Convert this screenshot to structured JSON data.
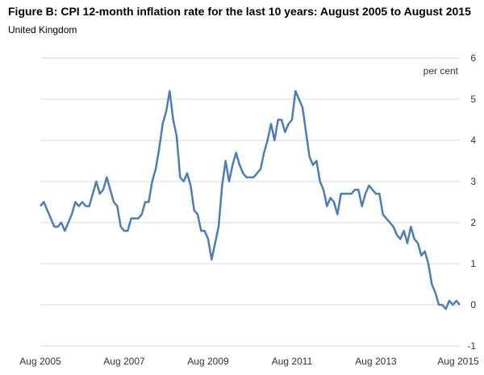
{
  "chart_data": {
    "type": "line",
    "title": "Figure B: CPI 12-month inflation rate for the last 10 years: August 2005 to August 2015",
    "subtitle": "United Kingdom",
    "unit_label": "per cent",
    "ylim": [
      -1,
      6
    ],
    "yticks": [
      -1,
      0,
      1,
      2,
      3,
      4,
      5,
      6
    ],
    "grid": true,
    "xlim": [
      "Aug 2005",
      "Aug 2015"
    ],
    "x_tick_labels": [
      "Aug 2005",
      "Aug 2007",
      "Aug 2009",
      "Aug 2011",
      "Aug 2013",
      "Aug 2015"
    ],
    "series": [
      {
        "color": "#4a7ebb",
        "start": "Aug 2005",
        "frequency": "monthly",
        "values": [
          2.4,
          2.5,
          2.3,
          2.1,
          1.9,
          1.9,
          2.0,
          1.8,
          2.0,
          2.2,
          2.5,
          2.4,
          2.5,
          2.4,
          2.4,
          2.7,
          3.0,
          2.7,
          2.8,
          3.1,
          2.8,
          2.5,
          2.4,
          1.9,
          1.8,
          1.8,
          2.1,
          2.1,
          2.1,
          2.2,
          2.5,
          2.5,
          3.0,
          3.3,
          3.8,
          4.4,
          4.7,
          5.2,
          4.5,
          4.1,
          3.1,
          3.0,
          3.2,
          2.9,
          2.3,
          2.2,
          1.8,
          1.8,
          1.6,
          1.1,
          1.5,
          1.9,
          2.9,
          3.5,
          3.0,
          3.4,
          3.7,
          3.4,
          3.2,
          3.1,
          3.1,
          3.1,
          3.2,
          3.3,
          3.7,
          4.0,
          4.4,
          4.0,
          4.5,
          4.5,
          4.2,
          4.4,
          4.5,
          5.2,
          5.0,
          4.8,
          4.2,
          3.6,
          3.4,
          3.5,
          3.0,
          2.8,
          2.4,
          2.6,
          2.5,
          2.2,
          2.7,
          2.7,
          2.7,
          2.7,
          2.8,
          2.8,
          2.4,
          2.7,
          2.9,
          2.8,
          2.7,
          2.7,
          2.2,
          2.1,
          2.0,
          1.9,
          1.7,
          1.6,
          1.8,
          1.5,
          1.9,
          1.6,
          1.5,
          1.2,
          1.3,
          1.0,
          0.5,
          0.3,
          0.0,
          0.0,
          -0.1,
          0.1,
          0.0,
          0.1,
          0.0
        ]
      }
    ]
  }
}
